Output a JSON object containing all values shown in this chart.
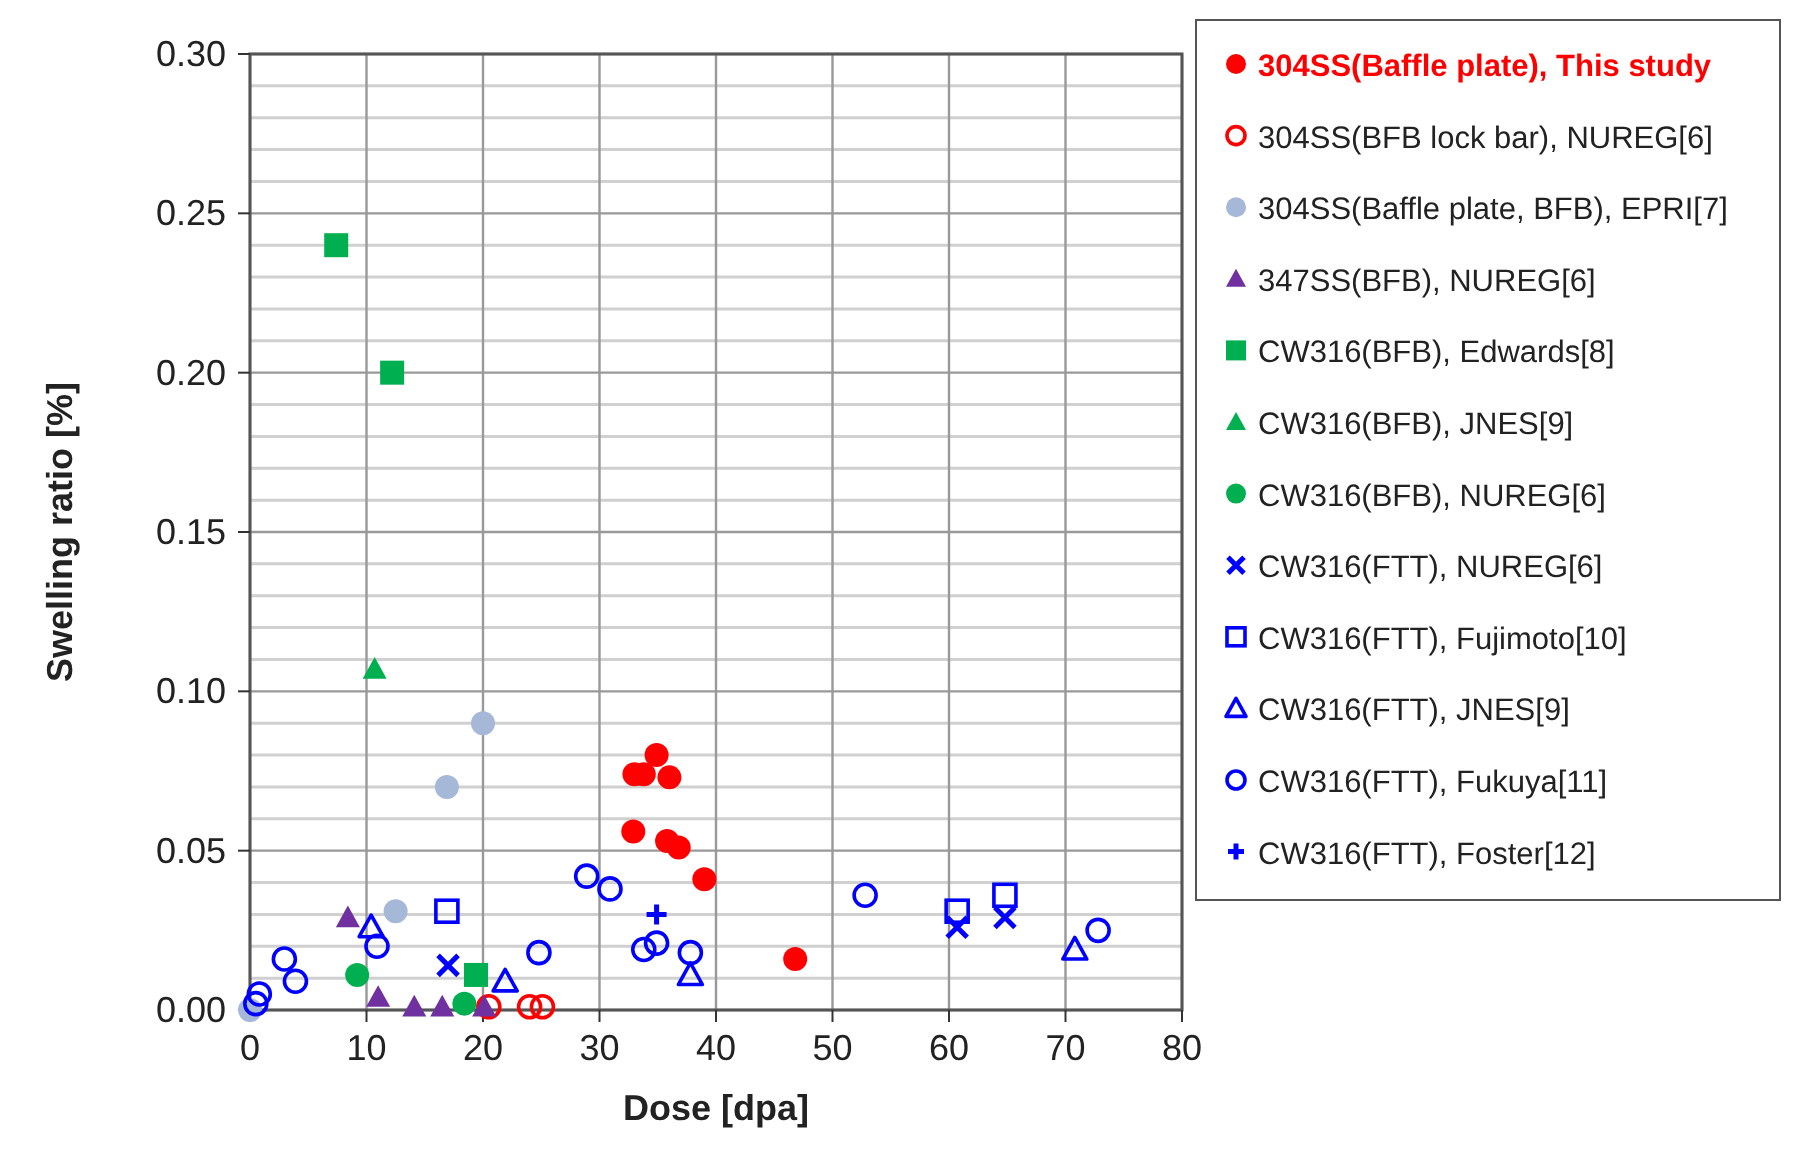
{
  "chart_data": {
    "type": "scatter",
    "xlabel": "Dose [dpa]",
    "ylabel": "Swelling ratio [%]",
    "xlim": [
      0,
      80
    ],
    "xticks": [
      0,
      10,
      20,
      30,
      40,
      50,
      60,
      70,
      80
    ],
    "ylim": [
      0,
      0.3
    ],
    "yticks": [
      {
        "value": 0,
        "label": "0.00"
      },
      {
        "value": 0.01,
        "label": null
      },
      {
        "value": 0.02,
        "label": null
      },
      {
        "value": 0.03,
        "label": null
      },
      {
        "value": 0.04,
        "label": null
      },
      {
        "value": 0.05,
        "label": "0.05"
      },
      {
        "value": 0.06,
        "label": null
      },
      {
        "value": 0.07,
        "label": null
      },
      {
        "value": 0.08,
        "label": null
      },
      {
        "value": 0.09,
        "label": null
      },
      {
        "value": 0.1,
        "label": "0.10"
      },
      {
        "value": 0.11,
        "label": null
      },
      {
        "value": 0.12,
        "label": null
      },
      {
        "value": 0.13,
        "label": null
      },
      {
        "value": 0.14,
        "label": null
      },
      {
        "value": 0.15,
        "label": "0.15"
      },
      {
        "value": 0.16,
        "label": null
      },
      {
        "value": 0.17,
        "label": null
      },
      {
        "value": 0.18,
        "label": null
      },
      {
        "value": 0.19,
        "label": null
      },
      {
        "value": 0.2,
        "label": "0.20"
      },
      {
        "value": 0.21,
        "label": null
      },
      {
        "value": 0.22,
        "label": null
      },
      {
        "value": 0.23,
        "label": null
      },
      {
        "value": 0.24,
        "label": null
      },
      {
        "value": 0.25,
        "label": "0.25"
      },
      {
        "value": 0.26,
        "label": null
      },
      {
        "value": 0.27,
        "label": null
      },
      {
        "value": 0.28,
        "label": null
      },
      {
        "value": 0.29,
        "label": null
      },
      {
        "value": 0.3,
        "label": "0.30"
      }
    ],
    "grid": true,
    "legend": "right",
    "series": [
      {
        "name": "304SS(Baffle plate), This study",
        "color": "#ff0000",
        "marker": "circle",
        "x": [
          32.9,
          33.0,
          33.8,
          34.9,
          36.0,
          35.8,
          36.8,
          39.0,
          46.8
        ],
        "values": [
          0.056,
          0.074,
          0.074,
          0.08,
          0.073,
          0.053,
          0.051,
          0.041,
          0.016
        ]
      },
      {
        "name": "304SS(BFB lock bar), NUREG[6]",
        "color": "#ff0000",
        "marker": "circle-open",
        "x": [
          20.5,
          24.0,
          25.1
        ],
        "values": [
          0.001,
          0.001,
          0.001
        ]
      },
      {
        "name": "304SS(Baffle plate, BFB), EPRI[7]",
        "color": "#a6b8d8",
        "marker": "circle",
        "x": [
          0,
          12.5,
          16.9,
          20.0
        ],
        "values": [
          0,
          0.031,
          0.07,
          0.09
        ]
      },
      {
        "name": "347SS(BFB), NUREG[6]",
        "color": "#7030a0",
        "marker": "triangle",
        "x": [
          8.4,
          11.0,
          14.1,
          16.5,
          20.1
        ],
        "values": [
          0.029,
          0.004,
          0.001,
          0.001,
          0.001
        ]
      },
      {
        "name": "CW316(BFB), Edwards[8]",
        "color": "#00b050",
        "marker": "square",
        "x": [
          7.4,
          12.2,
          19.4
        ],
        "values": [
          0.24,
          0.2,
          0.011
        ]
      },
      {
        "name": "CW316(BFB), JNES[9]",
        "color": "#00b050",
        "marker": "triangle",
        "x": [
          10.7
        ],
        "values": [
          0.107
        ]
      },
      {
        "name": "CW316(BFB), NUREG[6]",
        "color": "#00b050",
        "marker": "circle",
        "x": [
          9.2,
          18.4
        ],
        "values": [
          0.011,
          0.002
        ]
      },
      {
        "name": "CW316(FTT), NUREG[6]",
        "color": "#0000ff",
        "marker": "cross",
        "x": [
          17.0,
          60.7,
          64.8
        ],
        "values": [
          0.014,
          0.026,
          0.029
        ]
      },
      {
        "name": "CW316(FTT), Fujimoto[10]",
        "color": "#0000ff",
        "marker": "square-open",
        "x": [
          16.9,
          60.7,
          64.8
        ],
        "values": [
          0.031,
          0.031,
          0.036
        ]
      },
      {
        "name": "CW316(FTT), JNES[9]",
        "color": "#0000ff",
        "marker": "triangle-open",
        "x": [
          10.4,
          21.9,
          37.8,
          70.8
        ],
        "values": [
          0.026,
          0.009,
          0.011,
          0.019
        ]
      },
      {
        "name": "CW316(FTT), Fukuya[11]",
        "color": "#0000ff",
        "marker": "circle-open",
        "x": [
          0.5,
          0.8,
          2.95,
          3.9,
          10.9,
          24.8,
          28.9,
          30.9,
          33.8,
          34.9,
          37.8,
          52.8,
          72.8
        ],
        "values": [
          0.002,
          0.005,
          0.016,
          0.009,
          0.02,
          0.018,
          0.042,
          0.038,
          0.019,
          0.021,
          0.018,
          0.036,
          0.025
        ]
      },
      {
        "name": "CW316(FTT), Foster[12]",
        "color": "#0000ff",
        "marker": "plus",
        "x": [
          34.9
        ],
        "values": [
          0.03
        ]
      }
    ]
  }
}
